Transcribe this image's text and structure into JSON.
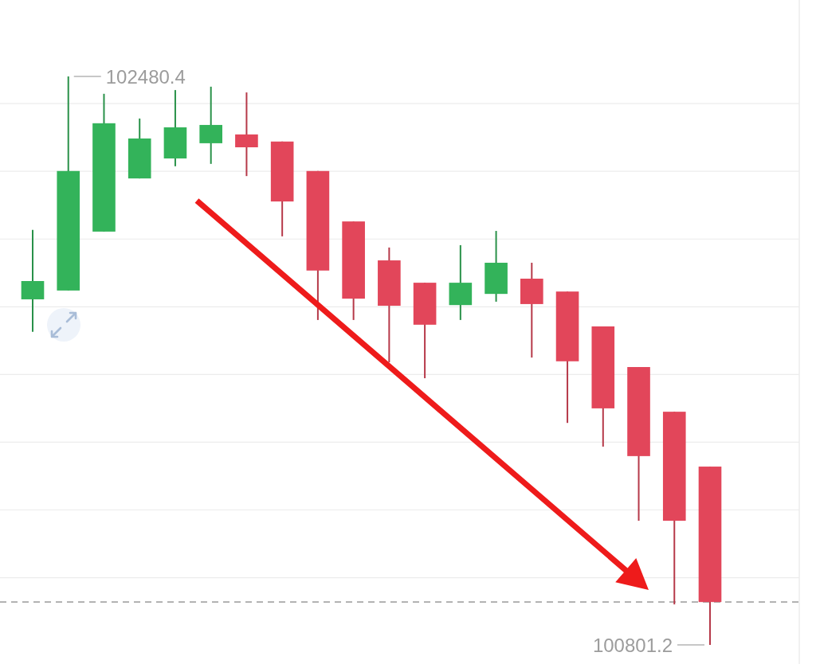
{
  "chart_data": {
    "type": "candlestick",
    "categories": [
      null,
      null,
      null,
      null,
      null,
      null,
      null,
      null,
      null,
      null,
      null,
      null,
      null,
      null,
      null,
      null,
      null,
      null,
      null,
      null
    ],
    "ohlc": [
      [
        101822,
        102027,
        101726,
        101876
      ],
      [
        101848,
        102480.4,
        101848,
        102201
      ],
      [
        102022,
        102429,
        102022,
        102342
      ],
      [
        102179,
        102356,
        102179,
        102297
      ],
      [
        102238,
        102440,
        102215,
        102330
      ],
      [
        102283,
        102450,
        102222,
        102337
      ],
      [
        102309,
        102433,
        102186,
        102271
      ],
      [
        102288,
        102288,
        102008,
        102111
      ],
      [
        102201,
        102201,
        101761,
        101907
      ],
      [
        102052,
        102052,
        101761,
        101824
      ],
      [
        101937,
        101975,
        101636,
        101803
      ],
      [
        101871,
        101871,
        101589,
        101747
      ],
      [
        101805,
        101982,
        101761,
        101871
      ],
      [
        101838,
        102024,
        101815,
        101930
      ],
      [
        101883,
        101930,
        101650,
        101808
      ],
      [
        101845,
        101845,
        101457,
        101639
      ],
      [
        101742,
        101742,
        101387,
        101500
      ],
      [
        101622,
        101622,
        101168,
        101359
      ],
      [
        101490,
        101490,
        100921,
        101168
      ],
      [
        101328,
        101328,
        100801.2,
        100928
      ]
    ],
    "colors": [
      "#33b35a",
      "#33b35a",
      "#33b35a",
      "#33b35a",
      "#33b35a",
      "#33b35a",
      "#e2465a",
      "#e2465a",
      "#e2465a",
      "#e2465a",
      "#e2465a",
      "#e2465a",
      "#33b35a",
      "#33b35a",
      "#e2465a",
      "#e2465a",
      "#e2465a",
      "#e2465a",
      "#e2465a",
      "#e2465a"
    ],
    "ylim": [
      100745,
      102706
    ],
    "yticks": [
      {
        "value": 101000,
        "label": null
      },
      {
        "value": 101200,
        "label": null
      },
      {
        "value": 101400,
        "label": null
      },
      {
        "value": 101600,
        "label": null
      },
      {
        "value": 101800,
        "label": null
      },
      {
        "value": 102000,
        "label": null
      },
      {
        "value": 102200,
        "label": null
      },
      {
        "value": 102400,
        "label": null
      }
    ],
    "grid": "y",
    "tick_labels": false,
    "ref_lines": [
      {
        "axis": "y",
        "value": 100928,
        "line_style": "dashed",
        "color": "#a8a8a8"
      }
    ],
    "annotations": [
      "102480.4",
      "100801.2"
    ]
  }
}
